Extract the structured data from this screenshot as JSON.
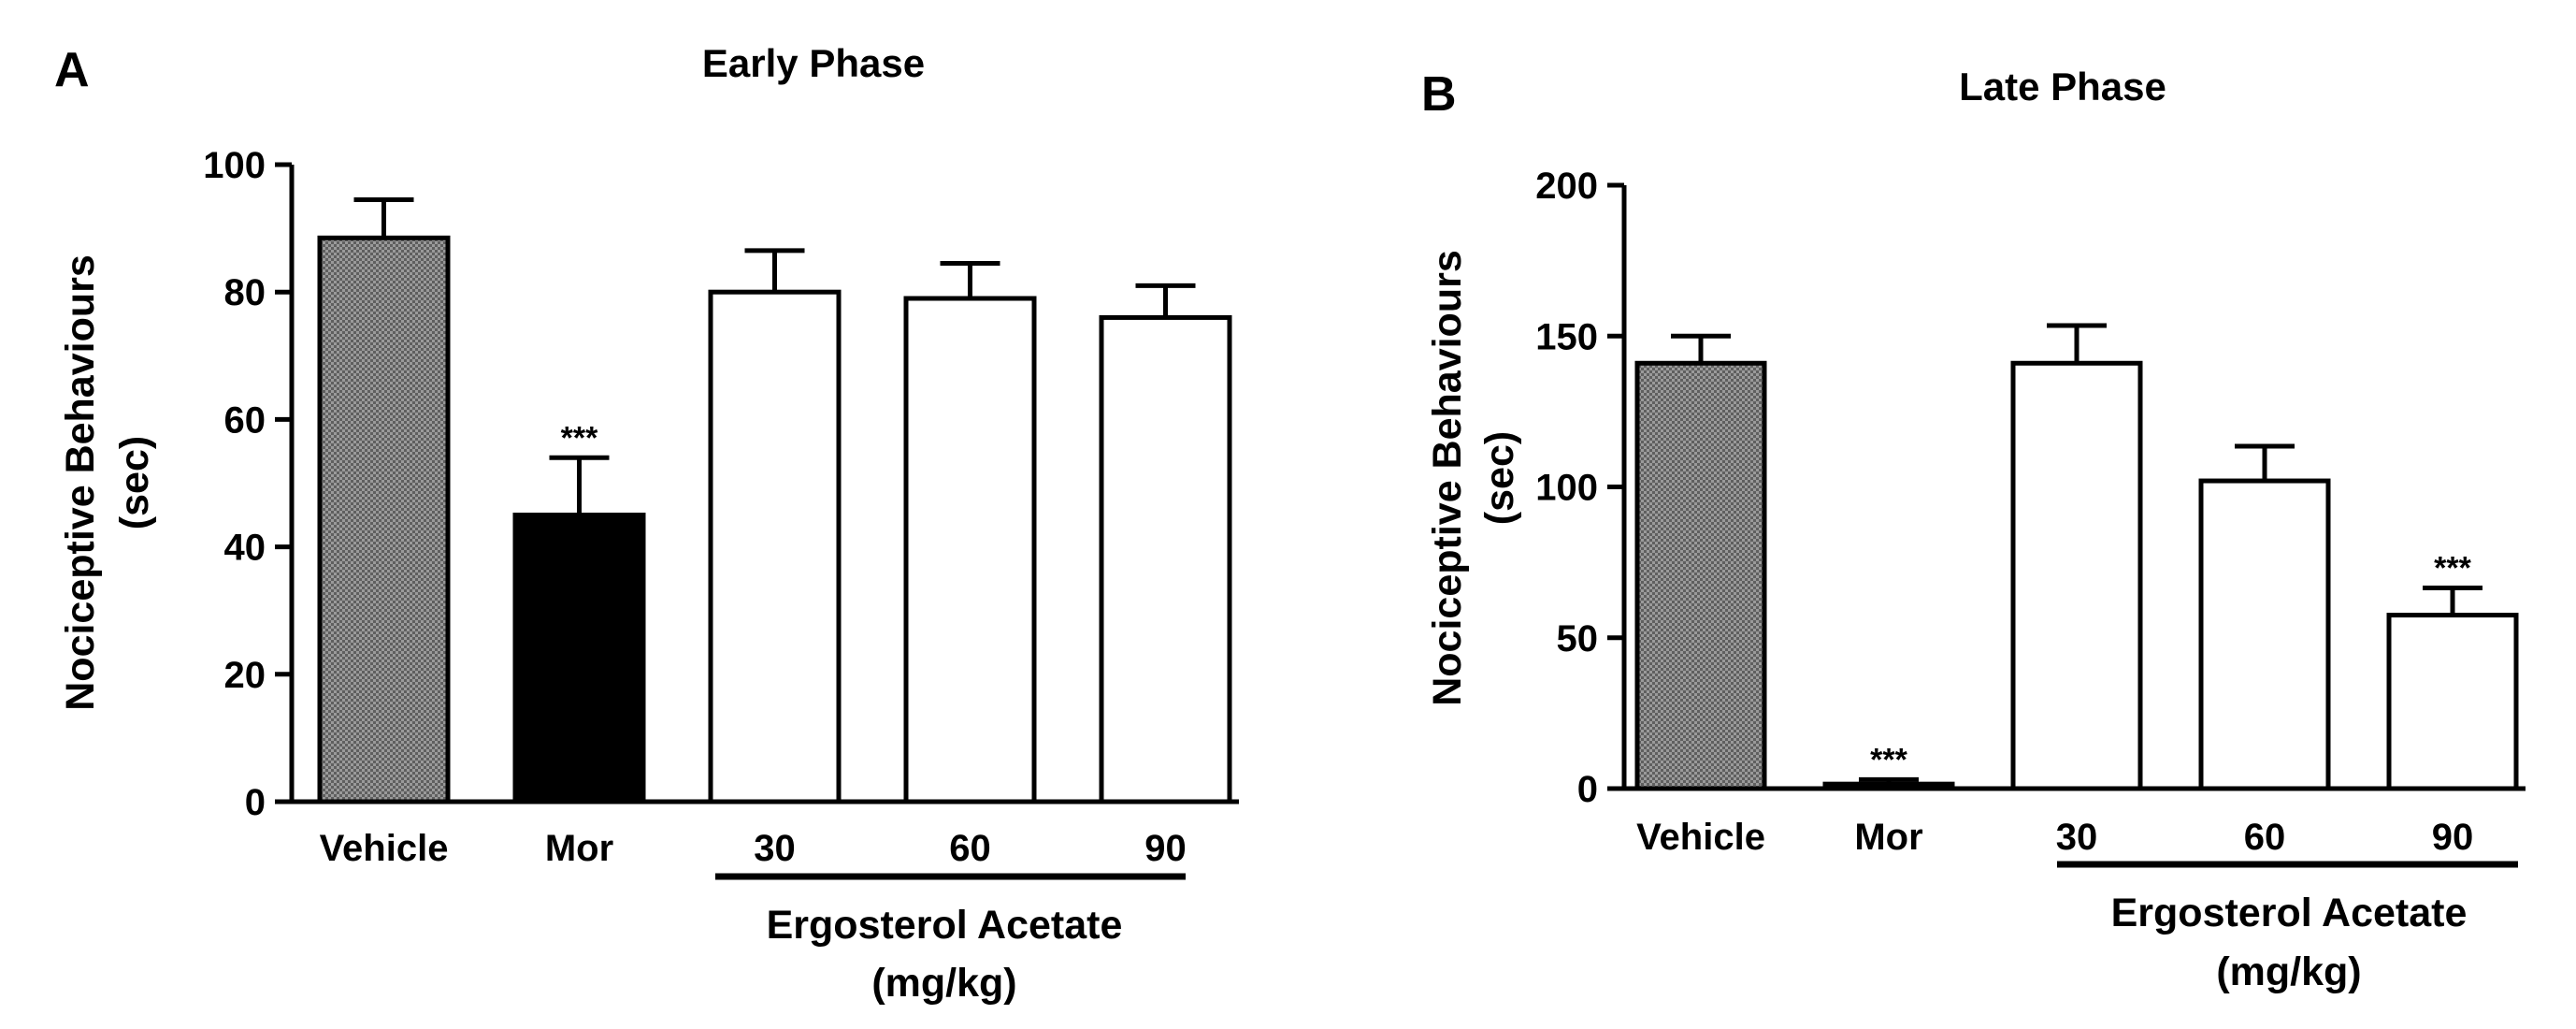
{
  "chart_data": [
    {
      "type": "bar",
      "panel_label": "A",
      "title": "Early Phase",
      "ylabel_lines": [
        "Nociceptive Behaviours",
        "(sec)"
      ],
      "ylim": [
        0,
        100
      ],
      "yticks": [
        0,
        20,
        40,
        60,
        80,
        100
      ],
      "categories": [
        "Vehicle",
        "Mor",
        "30",
        "60",
        "90"
      ],
      "values": [
        88.5,
        45,
        80,
        79,
        76
      ],
      "errors": [
        6,
        9,
        6.5,
        5.5,
        5
      ],
      "fills": [
        "pattern",
        "#000000",
        "#ffffff",
        "#ffffff",
        "#ffffff"
      ],
      "significance": [
        "",
        "***",
        "",
        "",
        ""
      ],
      "group_label_lines": [
        "Ergosterol Acetate",
        "(mg/kg)"
      ],
      "group_categories": [
        "30",
        "60",
        "90"
      ]
    },
    {
      "type": "bar",
      "panel_label": "B",
      "title": "Late Phase",
      "ylabel_lines": [
        "Nociceptive Behaviours",
        "(sec)"
      ],
      "ylim": [
        0,
        200
      ],
      "yticks": [
        0,
        50,
        100,
        150,
        200
      ],
      "categories": [
        "Vehicle",
        "Mor",
        "30",
        "60",
        "90"
      ],
      "values": [
        141,
        1.5,
        141,
        102,
        57.5
      ],
      "errors": [
        9,
        1.5,
        12.5,
        11.5,
        9
      ],
      "fills": [
        "pattern",
        "#000000",
        "#ffffff",
        "#ffffff",
        "#ffffff"
      ],
      "significance": [
        "",
        "***",
        "",
        "",
        "***"
      ],
      "group_label_lines": [
        "Ergosterol Acetate",
        "(mg/kg)"
      ],
      "group_categories": [
        "30",
        "60",
        "90"
      ]
    }
  ]
}
